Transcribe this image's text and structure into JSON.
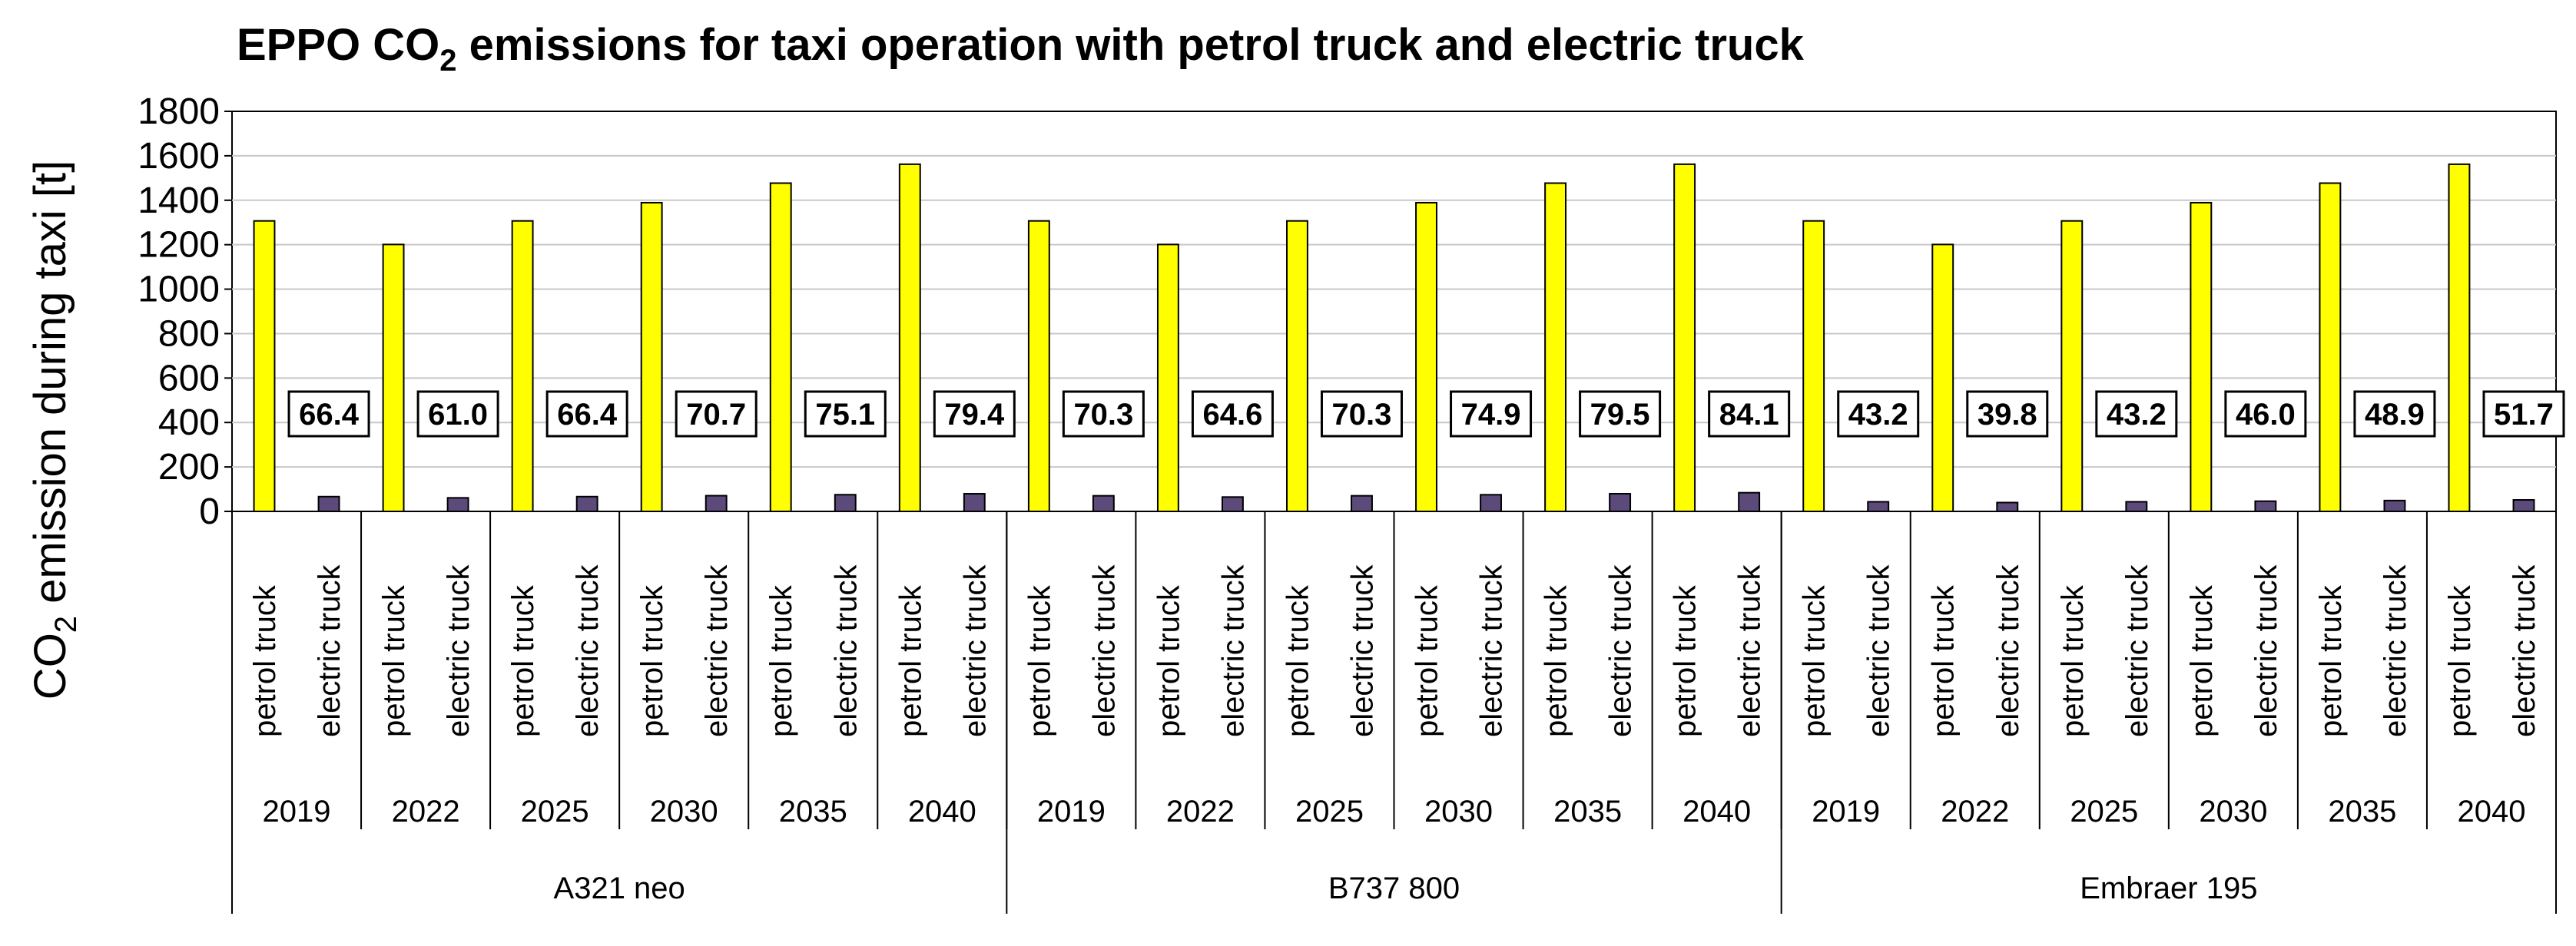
{
  "chart_data": {
    "type": "bar",
    "title": "EPPO CO2 emissions for taxi operation with petrol truck and electric truck",
    "title_parts": {
      "prefix": "EPPO CO",
      "subscript": "2",
      "suffix": " emissions for taxi operation with petrol truck and electric truck"
    },
    "ylabel": "CO2 emission during taxi [t]",
    "ylabel_parts": {
      "prefix": "CO",
      "subscript": "2",
      "suffix": " emission during taxi [t]"
    },
    "xlabel": "",
    "ylim": [
      0,
      1800
    ],
    "yticks": [
      0,
      200,
      400,
      600,
      800,
      1000,
      1200,
      1400,
      1600,
      1800
    ],
    "grid": true,
    "bar_categories": [
      "petrol truck",
      "electric truck"
    ],
    "colors": {
      "petrol truck": "#FFFF00",
      "electric truck": "#5B4A7A"
    },
    "groups": [
      {
        "aircraft": "A321 neo",
        "years": [
          {
            "year": "2019",
            "petrol": 1307,
            "electric": 66.4,
            "electric_label": "66.4"
          },
          {
            "year": "2022",
            "petrol": 1201,
            "electric": 61.0,
            "electric_label": "61.0"
          },
          {
            "year": "2025",
            "petrol": 1307,
            "electric": 66.4,
            "electric_label": "66.4"
          },
          {
            "year": "2030",
            "petrol": 1389,
            "electric": 70.7,
            "electric_label": "70.7"
          },
          {
            "year": "2035",
            "petrol": 1477,
            "electric": 75.1,
            "electric_label": "75.1"
          },
          {
            "year": "2040",
            "petrol": 1562,
            "electric": 79.4,
            "electric_label": "79.4"
          }
        ]
      },
      {
        "aircraft": "B737 800",
        "years": [
          {
            "year": "2019",
            "petrol": 1307,
            "electric": 70.3,
            "electric_label": "70.3"
          },
          {
            "year": "2022",
            "petrol": 1201,
            "electric": 64.6,
            "electric_label": "64.6"
          },
          {
            "year": "2025",
            "petrol": 1307,
            "electric": 70.3,
            "electric_label": "70.3"
          },
          {
            "year": "2030",
            "petrol": 1389,
            "electric": 74.9,
            "electric_label": "74.9"
          },
          {
            "year": "2035",
            "petrol": 1477,
            "electric": 79.5,
            "electric_label": "79.5"
          },
          {
            "year": "2040",
            "petrol": 1562,
            "electric": 84.1,
            "electric_label": "84.1"
          }
        ]
      },
      {
        "aircraft": "Embraer 195",
        "years": [
          {
            "year": "2019",
            "petrol": 1307,
            "electric": 43.2,
            "electric_label": "43.2"
          },
          {
            "year": "2022",
            "petrol": 1201,
            "electric": 39.8,
            "electric_label": "39.8"
          },
          {
            "year": "2025",
            "petrol": 1307,
            "electric": 43.2,
            "electric_label": "43.2"
          },
          {
            "year": "2030",
            "petrol": 1389,
            "electric": 46.0,
            "electric_label": "46.0"
          },
          {
            "year": "2035",
            "petrol": 1477,
            "electric": 48.9,
            "electric_label": "48.9"
          },
          {
            "year": "2040",
            "petrol": 1562,
            "electric": 51.7,
            "electric_label": "51.7"
          }
        ]
      }
    ]
  }
}
